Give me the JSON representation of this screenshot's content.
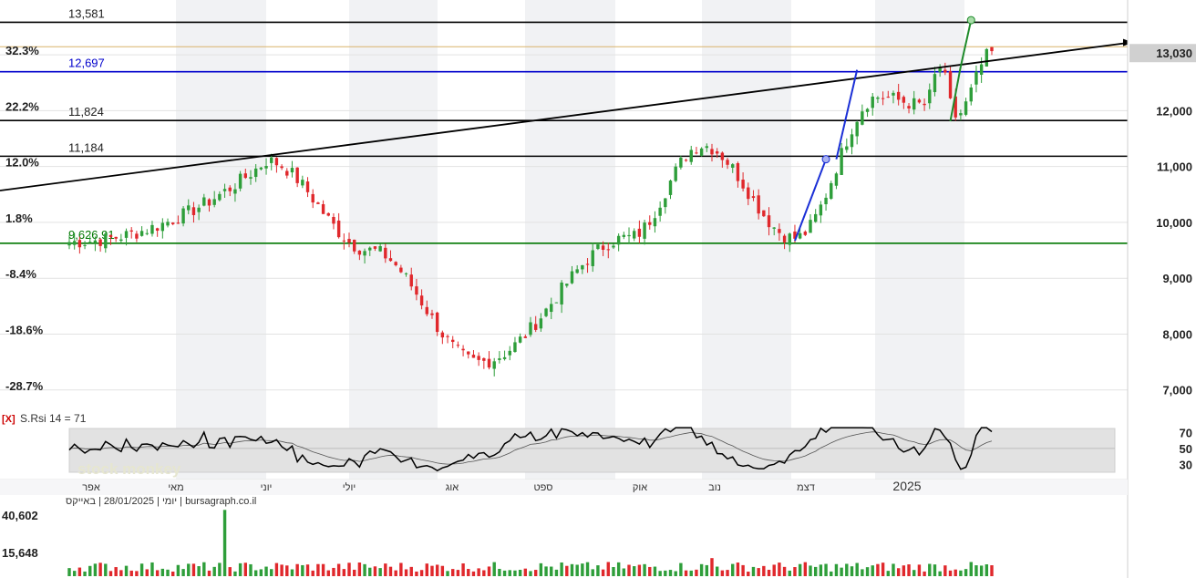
{
  "chart_data": {
    "type": "candlestick",
    "symbol": "באייקס",
    "source": "bursagraph.co.il",
    "timeframe": "יומי",
    "date": "28/01/2025",
    "watermark": "stock monkey",
    "x_months": [
      "אפר",
      "מאי",
      "יוני",
      "יולי",
      "אוג",
      "ספט",
      "אוק",
      "נוב",
      "דצמ",
      "2025"
    ],
    "y_ticks": [
      7000,
      8000,
      9000,
      10000,
      11000,
      12000,
      13000
    ],
    "y_tick_labels": [
      "7,000",
      "8,000",
      "9,000",
      "10,000",
      "11,000",
      "12,000",
      "13,000"
    ],
    "pct_ticks": [
      "32.3%",
      "22.2%",
      "12.0%",
      "1.8%",
      "-8.4%",
      "-18.6%",
      "-28.7%"
    ],
    "ylim": [
      6800,
      13850
    ],
    "last_price": 13030,
    "last_price_label": "13,030",
    "levels": [
      {
        "label": "13,581",
        "value": 13581,
        "color": "#000000"
      },
      {
        "label": "12,697",
        "value": 12697,
        "color": "#0000cc"
      },
      {
        "label": "11,824",
        "value": 11824,
        "color": "#000000"
      },
      {
        "label": "11,184",
        "value": 11184,
        "color": "#000000"
      },
      {
        "label": "9,626.91",
        "value": 9626.91,
        "color": "#007700"
      }
    ],
    "trendline": {
      "start_value": 10570,
      "end_value": 13220,
      "color": "#000000"
    },
    "blue_lines": [
      {
        "x0_index": 140,
        "y0": 9670,
        "x1_index": 146,
        "y1": 11130
      },
      {
        "x0_index": 148,
        "y0": 11130,
        "x1_index": 152,
        "y1": 12730
      }
    ],
    "green_lines": [
      {
        "x0_index": 170,
        "y0": 11810,
        "x1_index": 172,
        "y1": 12790
      },
      {
        "x0_index": 172,
        "y0": 12790,
        "x1_index": 174,
        "y1": 13620
      }
    ],
    "anchors": [
      {
        "x_index": 38,
        "value": 11100
      },
      {
        "x_index": 58,
        "value": 9500
      },
      {
        "x_index": 79,
        "value": 7500
      },
      {
        "x_index": 108,
        "value": 9730
      },
      {
        "x_index": 122,
        "value": 11380
      },
      {
        "x_index": 140,
        "value": 9720
      },
      {
        "x_index": 156,
        "value": 12250
      },
      {
        "x_index": 165,
        "value": 12100
      },
      {
        "x_index": 168,
        "value": 12780
      },
      {
        "x_index": 171,
        "value": 11900
      },
      {
        "x_index": 178,
        "value": 13030
      }
    ],
    "candle_count": 179,
    "rsi": {
      "label": "S.Rsi 14 = 71",
      "close_label": "[X]",
      "levels": [
        70,
        50,
        30
      ],
      "level_labels": [
        "70",
        "50",
        "30"
      ],
      "value": 71
    },
    "volume": {
      "ticks": [
        "40,602",
        "15,648"
      ],
      "tick_values": [
        40602,
        15648
      ],
      "spike_value": 44000
    }
  }
}
